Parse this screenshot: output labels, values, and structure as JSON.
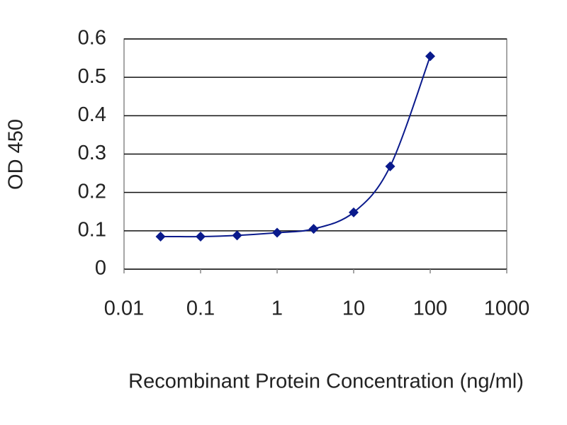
{
  "chart_data": {
    "type": "line",
    "x_label": "Recombinant Protein Concentration (ng/ml)",
    "y_label": "OD 450",
    "x": [
      0.03,
      0.1,
      0.3,
      1,
      3,
      10,
      30,
      100
    ],
    "series": [
      {
        "color": "#0a1a8c",
        "values": [
          0.085,
          0.085,
          0.088,
          0.095,
          0.105,
          0.148,
          0.268,
          0.555
        ]
      }
    ],
    "xscale": "log",
    "xlim": [
      0.01,
      1000
    ],
    "xticks": [
      0.01,
      0.1,
      1,
      10,
      100,
      1000
    ],
    "ylim": [
      0,
      0.6
    ],
    "yticks": [
      0,
      0.1,
      0.2,
      0.3,
      0.4,
      0.5,
      0.6
    ],
    "grid": true
  }
}
